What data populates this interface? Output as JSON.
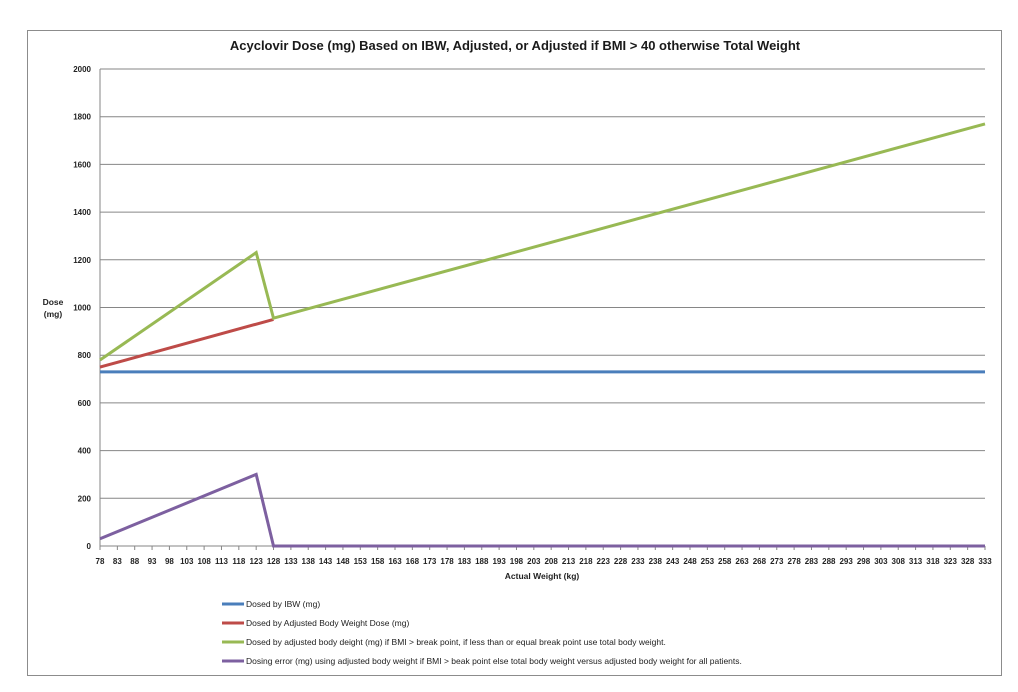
{
  "chart_data": {
    "type": "line",
    "title": "Acyclovir Dose (mg) Based on IBW, Adjusted, or Adjusted if BMI > 40 otherwise Total Weight",
    "xlabel": "Actual Weight (kg)",
    "ylabel_lines": [
      "Dose",
      "(mg)"
    ],
    "ylim": [
      0,
      2000
    ],
    "yticks": [
      0,
      200,
      400,
      600,
      800,
      1000,
      1200,
      1400,
      1600,
      1800,
      2000
    ],
    "x_start": 78,
    "x_end": 333,
    "x_step": 5,
    "grid": "horizontal",
    "legend_position": "bottom",
    "series": [
      {
        "name": "Dosed by IBW (mg)",
        "color": "#4a7ebb",
        "points": [
          [
            78,
            730
          ],
          [
            333,
            730
          ]
        ]
      },
      {
        "name": "Dosed by Adjusted Body Weight  Dose (mg)",
        "color": "#be4b48",
        "points": [
          [
            78,
            750
          ],
          [
            128,
            950
          ]
        ]
      },
      {
        "name": "Dosed by adjusted body deight (mg) if BMI > break point, if less than or equal  break point use total body weight.",
        "color": "#98b954",
        "points": [
          [
            78,
            780
          ],
          [
            123,
            1230
          ],
          [
            128,
            955
          ],
          [
            333,
            1770
          ]
        ]
      },
      {
        "name": "Dosing error (mg) using adjusted body weight if BMI > beak point else total body weight versus adjusted body weight for all patients.",
        "color": "#7d60a0",
        "points": [
          [
            78,
            30
          ],
          [
            123,
            300
          ],
          [
            128,
            0
          ],
          [
            333,
            0
          ]
        ]
      }
    ]
  }
}
